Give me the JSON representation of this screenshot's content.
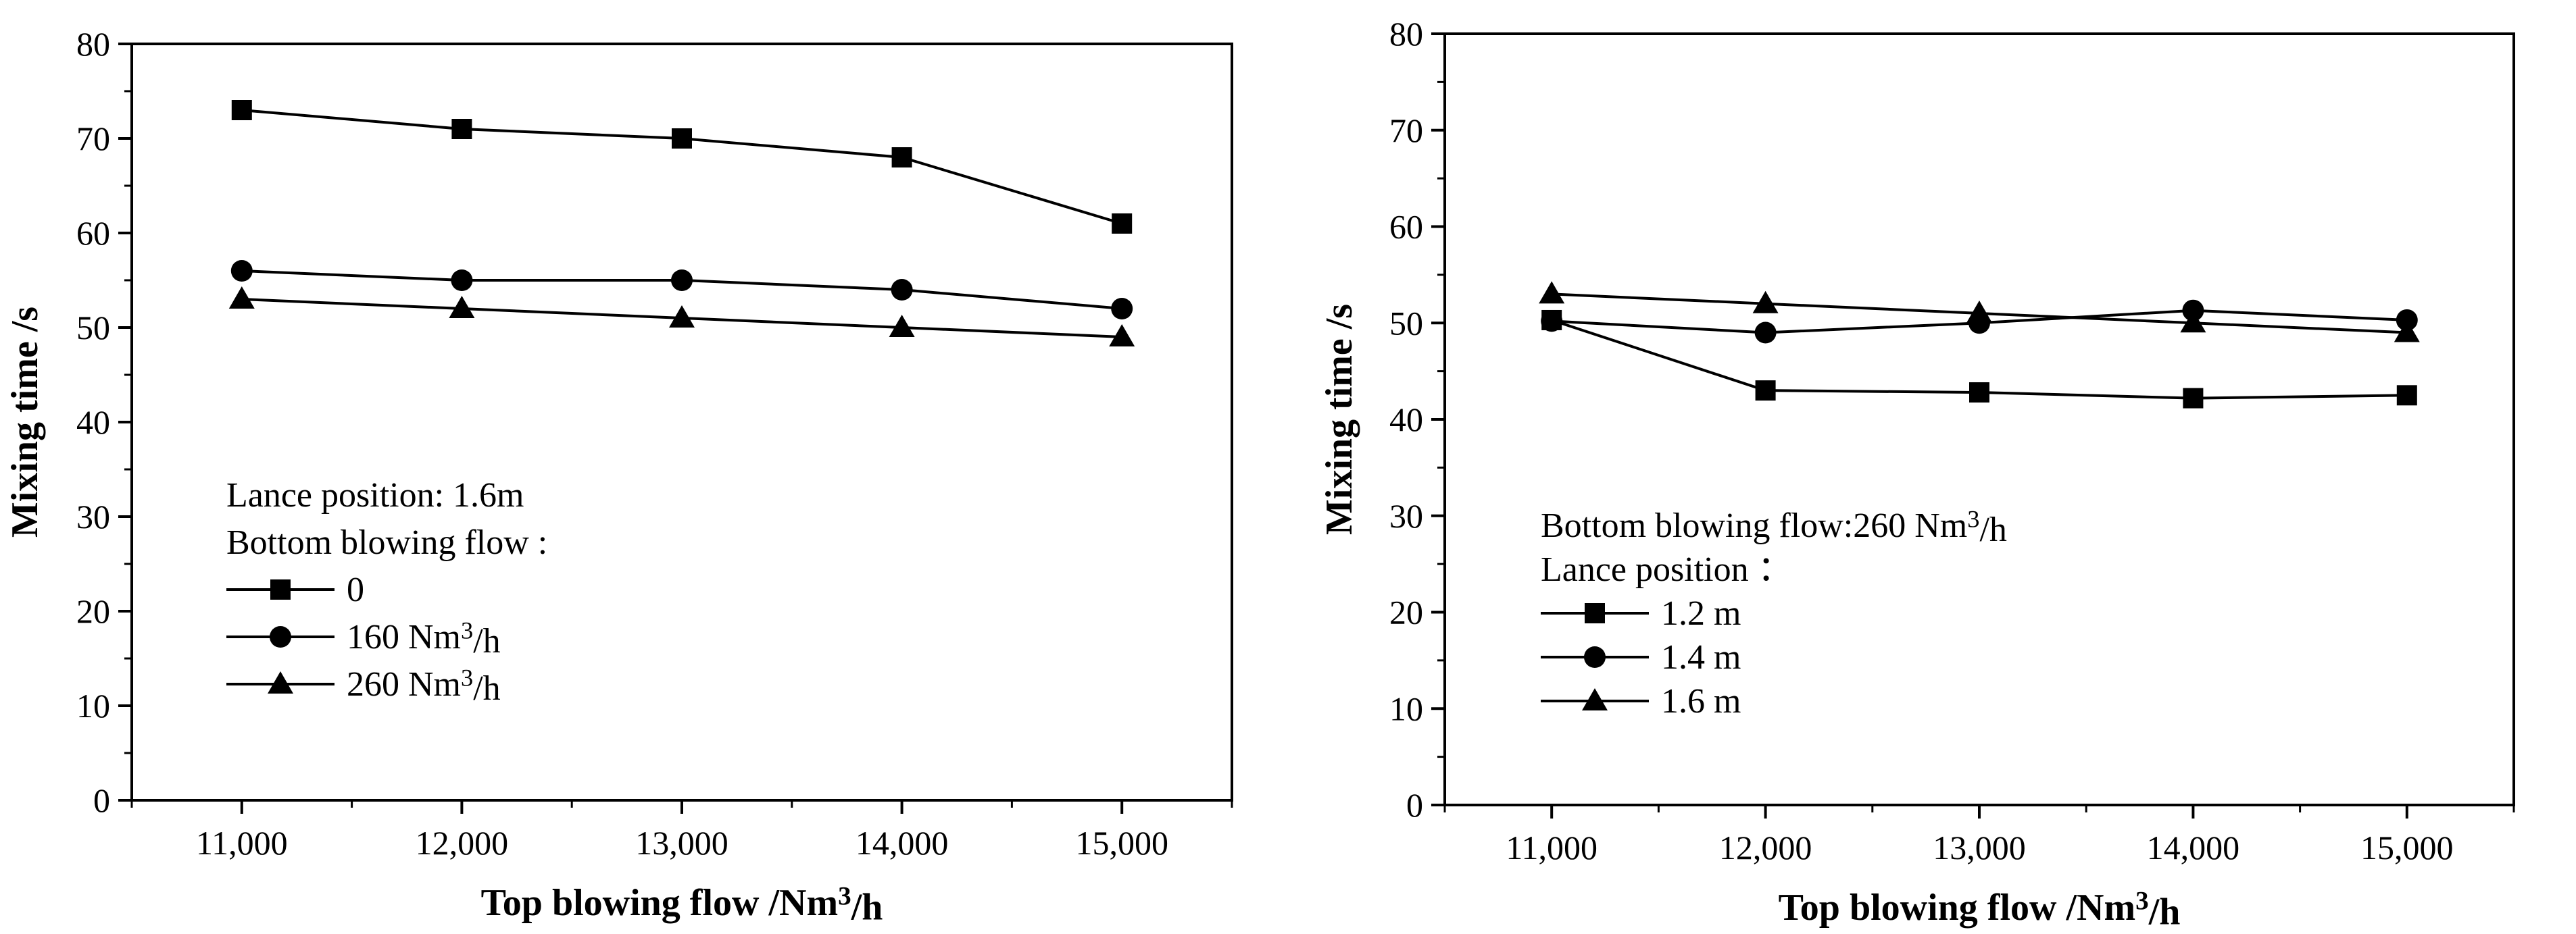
{
  "chart_data": [
    {
      "type": "line",
      "xlabel": "Top blowing flow /Nm³/h",
      "ylabel": "Mixing time /s",
      "ylim": [
        0,
        80
      ],
      "yticks": [
        0,
        10,
        20,
        30,
        40,
        50,
        60,
        70,
        80
      ],
      "categories": [
        "11,000",
        "12,000",
        "13,000",
        "14,000",
        "15,000"
      ],
      "x": [
        11000,
        12000,
        13000,
        14000,
        15000
      ],
      "legend_title": [
        "Lance position: 1.6m",
        "Bottom blowing flow :"
      ],
      "legend_position": "bottom-left",
      "series": [
        {
          "name": "0",
          "marker": "square",
          "values": [
            73,
            71,
            70,
            68,
            61
          ]
        },
        {
          "name": "160 Nm³/h",
          "marker": "circle",
          "values": [
            56,
            55,
            55,
            54,
            52
          ]
        },
        {
          "name": "260 Nm³/h",
          "marker": "triangle",
          "values": [
            53,
            52,
            51,
            50,
            49
          ]
        }
      ]
    },
    {
      "type": "line",
      "xlabel": "Top blowing flow /Nm³/h",
      "ylabel": "Mixing time /s",
      "ylim": [
        0,
        80
      ],
      "yticks": [
        0,
        10,
        20,
        30,
        40,
        50,
        60,
        70,
        80
      ],
      "categories": [
        "11,000",
        "12,000",
        "13,000",
        "14,000",
        "15,000"
      ],
      "x": [
        11000,
        12000,
        13000,
        14000,
        15000
      ],
      "legend_title": [
        "Bottom blowing flow:260 Nm³/h",
        "Lance position ："
      ],
      "legend_position": "bottom-left",
      "series": [
        {
          "name": "1.2 m",
          "marker": "square",
          "values": [
            50.3,
            43,
            42.8,
            42.2,
            42.5
          ]
        },
        {
          "name": "1.4 m",
          "marker": "circle",
          "values": [
            50.2,
            49,
            50,
            51.3,
            50.3
          ]
        },
        {
          "name": "1.6 m",
          "marker": "triangle",
          "values": [
            53,
            52,
            51,
            50,
            49
          ]
        }
      ]
    }
  ]
}
